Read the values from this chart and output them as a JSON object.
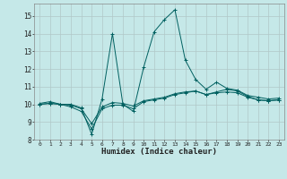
{
  "xlabel": "Humidex (Indice chaleur)",
  "xlim": [
    -0.5,
    23.5
  ],
  "ylim": [
    8,
    15.7
  ],
  "yticks": [
    8,
    9,
    10,
    11,
    12,
    13,
    14,
    15
  ],
  "xticks": [
    0,
    1,
    2,
    3,
    4,
    5,
    6,
    7,
    8,
    9,
    10,
    11,
    12,
    13,
    14,
    15,
    16,
    17,
    18,
    19,
    20,
    21,
    22,
    23
  ],
  "background_color": "#c5e8e8",
  "grid_color": "#b0c8c8",
  "line_color": "#006060",
  "series": [
    {
      "x": [
        0,
        1,
        2,
        3,
        4,
        5,
        6,
        7,
        8,
        9,
        10,
        11,
        12,
        13,
        14,
        15,
        16,
        17,
        18,
        19,
        20,
        21,
        22,
        23
      ],
      "y": [
        10.05,
        10.15,
        10.0,
        10.0,
        9.8,
        8.3,
        10.3,
        14.0,
        10.0,
        9.6,
        12.1,
        14.1,
        14.8,
        15.35,
        12.5,
        11.4,
        10.85,
        11.25,
        10.9,
        10.8,
        10.5,
        10.4,
        10.3,
        10.35
      ]
    },
    {
      "x": [
        0,
        1,
        2,
        3,
        4,
        5,
        6,
        7,
        8,
        9,
        10,
        11,
        12,
        13,
        14,
        15,
        16,
        17,
        18,
        19,
        20,
        21,
        22,
        23
      ],
      "y": [
        10.0,
        10.05,
        10.0,
        9.85,
        9.6,
        8.6,
        9.75,
        9.95,
        9.95,
        9.75,
        10.15,
        10.25,
        10.35,
        10.55,
        10.65,
        10.75,
        10.55,
        10.7,
        10.85,
        10.75,
        10.45,
        10.25,
        10.2,
        10.25
      ]
    },
    {
      "x": [
        0,
        1,
        2,
        3,
        4,
        5,
        6,
        7,
        8,
        9,
        10,
        11,
        12,
        13,
        14,
        15,
        16,
        17,
        18,
        19,
        20,
        21,
        22,
        23
      ],
      "y": [
        10.0,
        10.05,
        10.0,
        9.95,
        9.75,
        8.9,
        9.85,
        10.1,
        10.05,
        9.9,
        10.2,
        10.3,
        10.4,
        10.6,
        10.7,
        10.75,
        10.55,
        10.65,
        10.7,
        10.65,
        10.4,
        10.25,
        10.2,
        10.25
      ]
    }
  ]
}
